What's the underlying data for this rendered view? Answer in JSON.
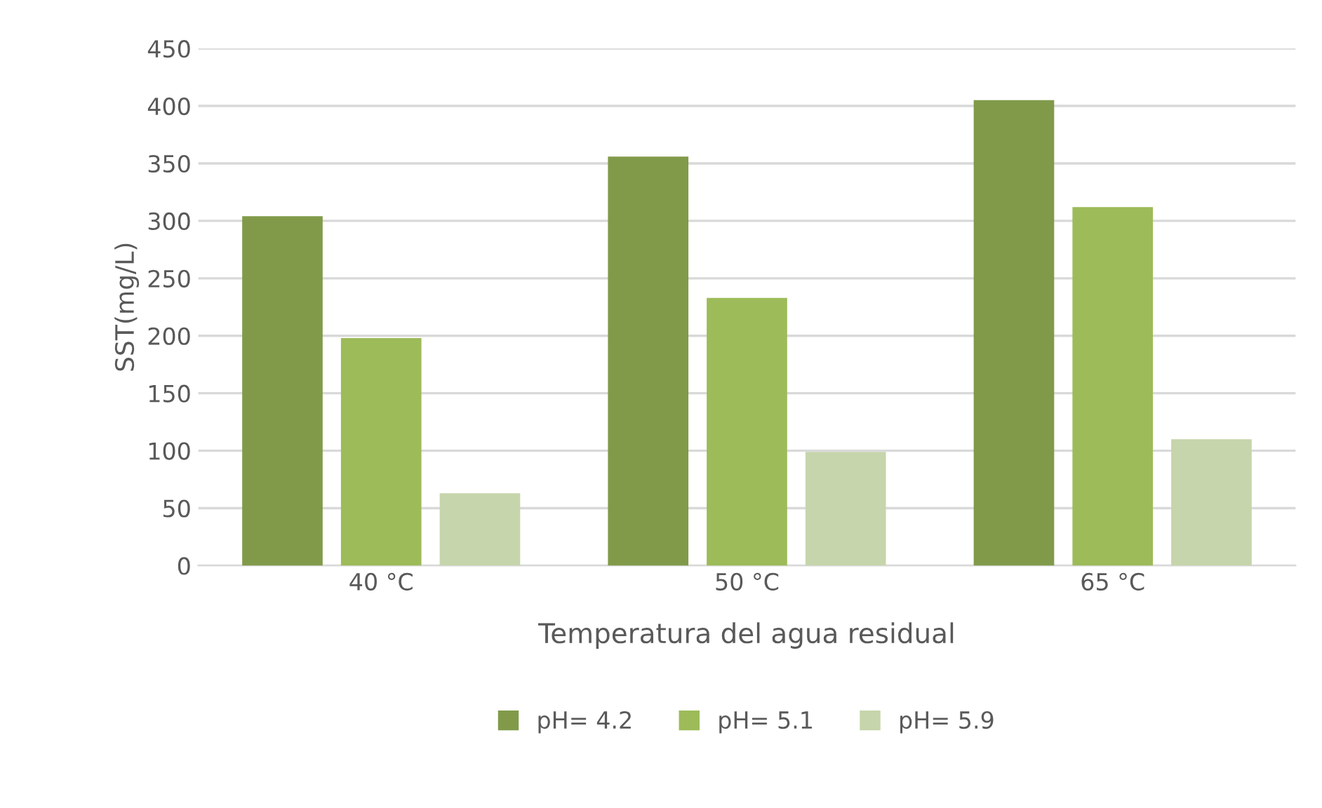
{
  "chart_data": {
    "type": "bar",
    "xlabel": "Temperatura del agua residual",
    "ylabel": "SST(mg/L)",
    "categories": [
      "40 °C",
      "50 °C",
      "65 °C"
    ],
    "series": [
      {
        "name": "pH= 4.2",
        "color": "#819a4a",
        "values": [
          304,
          356,
          405
        ]
      },
      {
        "name": "pH= 5.1",
        "color": "#9dbb59",
        "values": [
          198,
          233,
          312
        ]
      },
      {
        "name": "pH= 5.9",
        "color": "#c6d5ab",
        "values": [
          63,
          99,
          110
        ]
      }
    ],
    "ylim": [
      0,
      450
    ],
    "yticks": [
      0,
      50,
      100,
      150,
      200,
      250,
      300,
      350,
      400,
      450
    ],
    "grid": "y",
    "legend": "bottom"
  }
}
